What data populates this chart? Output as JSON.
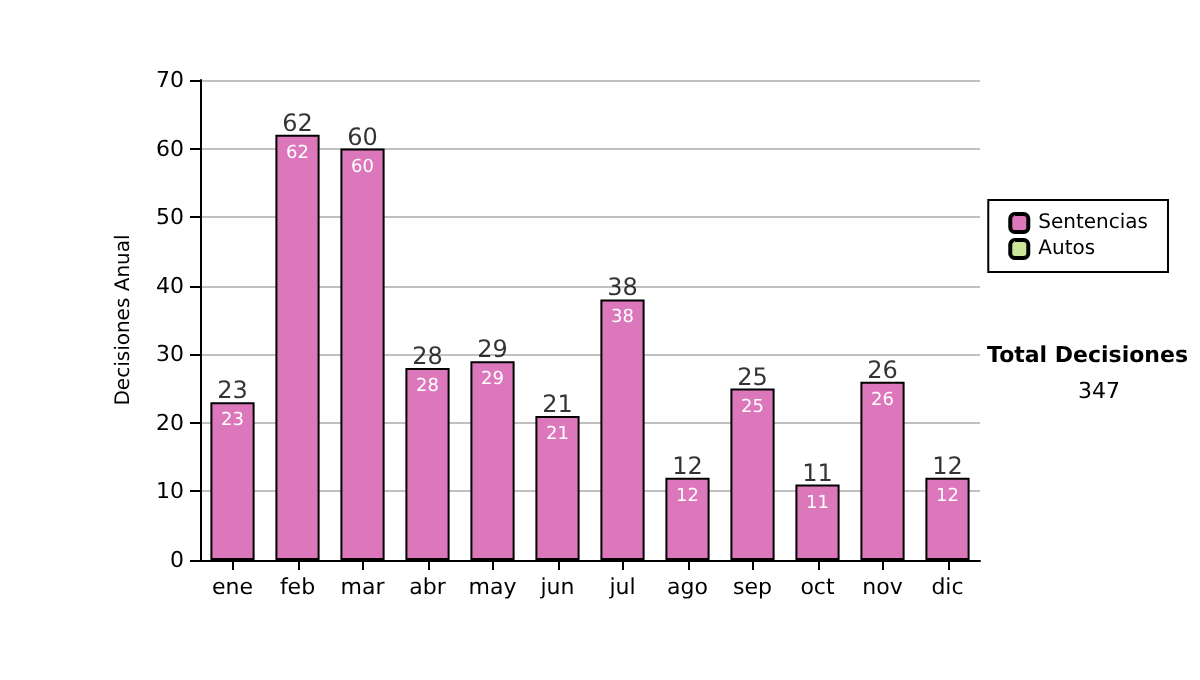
{
  "chart_data": {
    "type": "bar",
    "stacked": true,
    "ylabel": "Decisiones Anual",
    "categories": [
      "ene",
      "feb",
      "mar",
      "abr",
      "may",
      "jun",
      "jul",
      "ago",
      "sep",
      "oct",
      "nov",
      "dic"
    ],
    "series": [
      {
        "name": "Sentencias",
        "color": "#dd77bb",
        "values": [
          23,
          62,
          60,
          28,
          29,
          21,
          38,
          12,
          25,
          11,
          26,
          12
        ],
        "value_labels": [
          "23",
          "62",
          "60",
          "28",
          "29",
          "21",
          "38",
          "12",
          "25",
          "11",
          "26",
          "12"
        ]
      },
      {
        "name": "Autos",
        "color": "#cce699",
        "values": [
          0,
          0,
          0,
          0,
          0,
          0,
          0,
          0,
          0,
          0,
          0,
          0
        ]
      }
    ],
    "totals": [
      "23",
      "62",
      "60",
      "28",
      "29",
      "21",
      "38",
      "12",
      "25",
      "11",
      "26",
      "12"
    ],
    "ylim": [
      0,
      70
    ],
    "yticks": [
      0,
      10,
      20,
      30,
      40,
      50,
      60,
      70
    ],
    "grid": "y",
    "legend": "right",
    "annotations": [
      "Total Decisiones",
      "347"
    ]
  }
}
